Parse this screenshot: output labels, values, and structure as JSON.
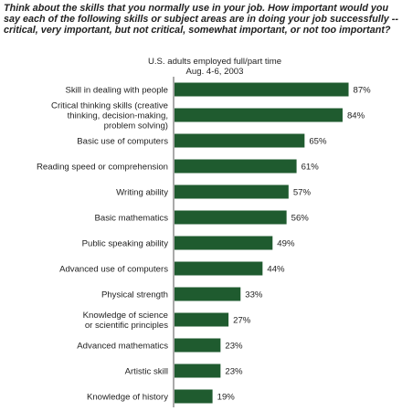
{
  "chart_data": {
    "type": "bar",
    "orientation": "horizontal",
    "title": "Think about the skills that you normally use in your job. How important would you say each of the following skills or subject areas are in doing your job successfully -- critical, very important, but not critical, somewhat important, or not too important?",
    "subtitle": "U.S. adults employed full/part time\nAug. 4-6, 2003",
    "categories": [
      "Skill in dealing with people",
      "Critical thinking skills (creative\nthinking, decision-making,\nproblem solving)",
      "Basic use of computers",
      "Reading speed or comprehension",
      "Writing ability",
      "Basic mathematics",
      "Public speaking ability",
      "Advanced use of computers",
      "Physical strength",
      "Knowledge of science\nor scientific principles",
      "Advanced mathematics",
      "Artistic skill",
      "Knowledge of history"
    ],
    "values": [
      87,
      84,
      65,
      61,
      57,
      56,
      49,
      44,
      33,
      27,
      23,
      23,
      19
    ],
    "value_labels": [
      "87%",
      "84%",
      "65%",
      "61%",
      "57%",
      "56%",
      "49%",
      "44%",
      "33%",
      "27%",
      "23%",
      "23%",
      "19%"
    ],
    "xlim": [
      0,
      100
    ],
    "bar_color": "#1f5b2f",
    "grid": false,
    "legend": false
  }
}
